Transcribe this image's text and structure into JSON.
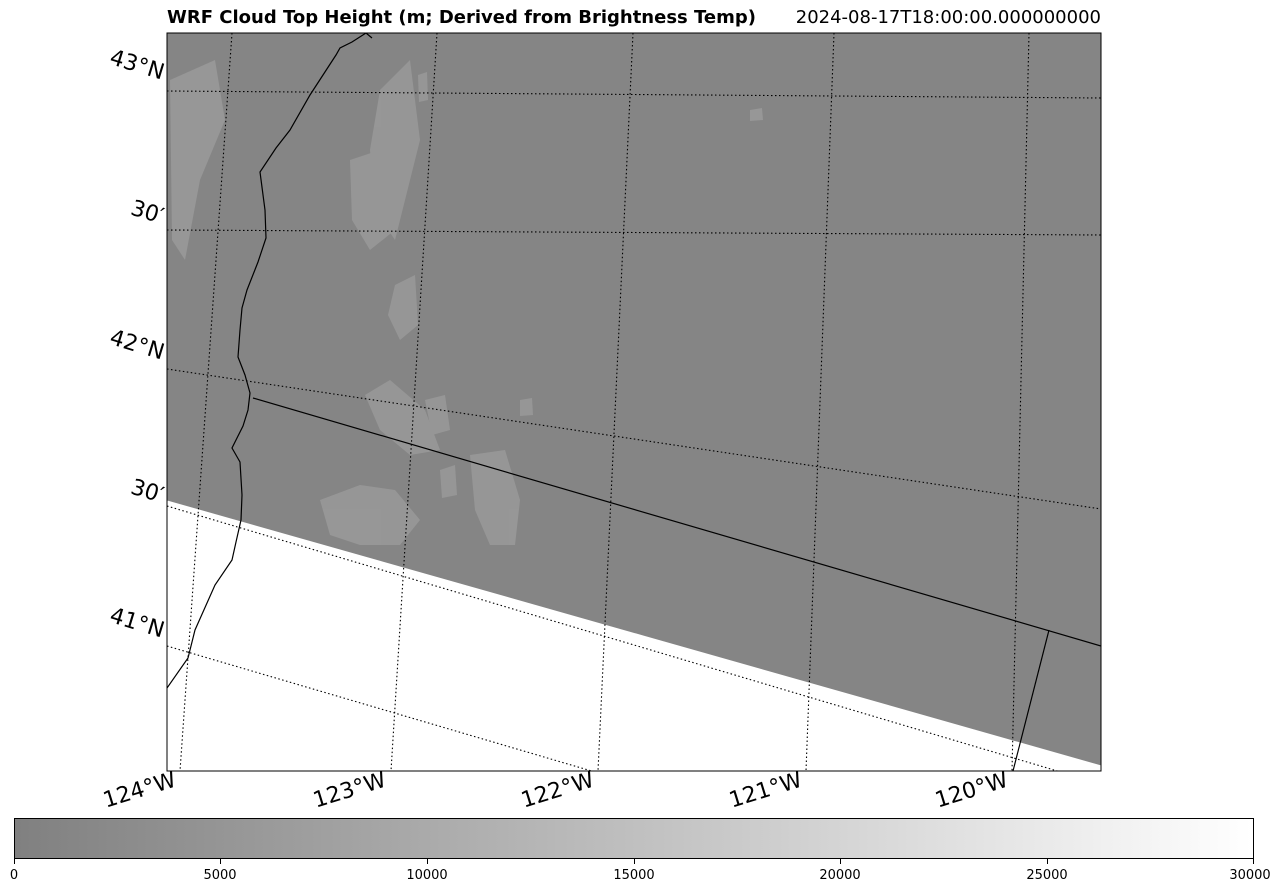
{
  "title": "WRF Cloud Top Height (m; Derived from Brightness Temp)",
  "timestamp": "2024-08-17T18:00:00.000000000",
  "latitude_labels": [
    "43°N",
    "30′",
    "42°N",
    "30′",
    "41°N"
  ],
  "longitude_labels": [
    "124°W",
    "123°W",
    "122°W",
    "121°W",
    "120°W"
  ],
  "colorbar": {
    "min": 0,
    "max": 30000,
    "colormap": "gray_r",
    "tick_labels": [
      "0",
      "5000",
      "10000",
      "15000",
      "20000",
      "25000",
      "30000"
    ]
  },
  "colors": {
    "cloud_field": "#858585",
    "cloud_patch": "#9a9a9a",
    "no_data": "#ffffff",
    "coastline": "#000000",
    "gridline": "#000000"
  }
}
